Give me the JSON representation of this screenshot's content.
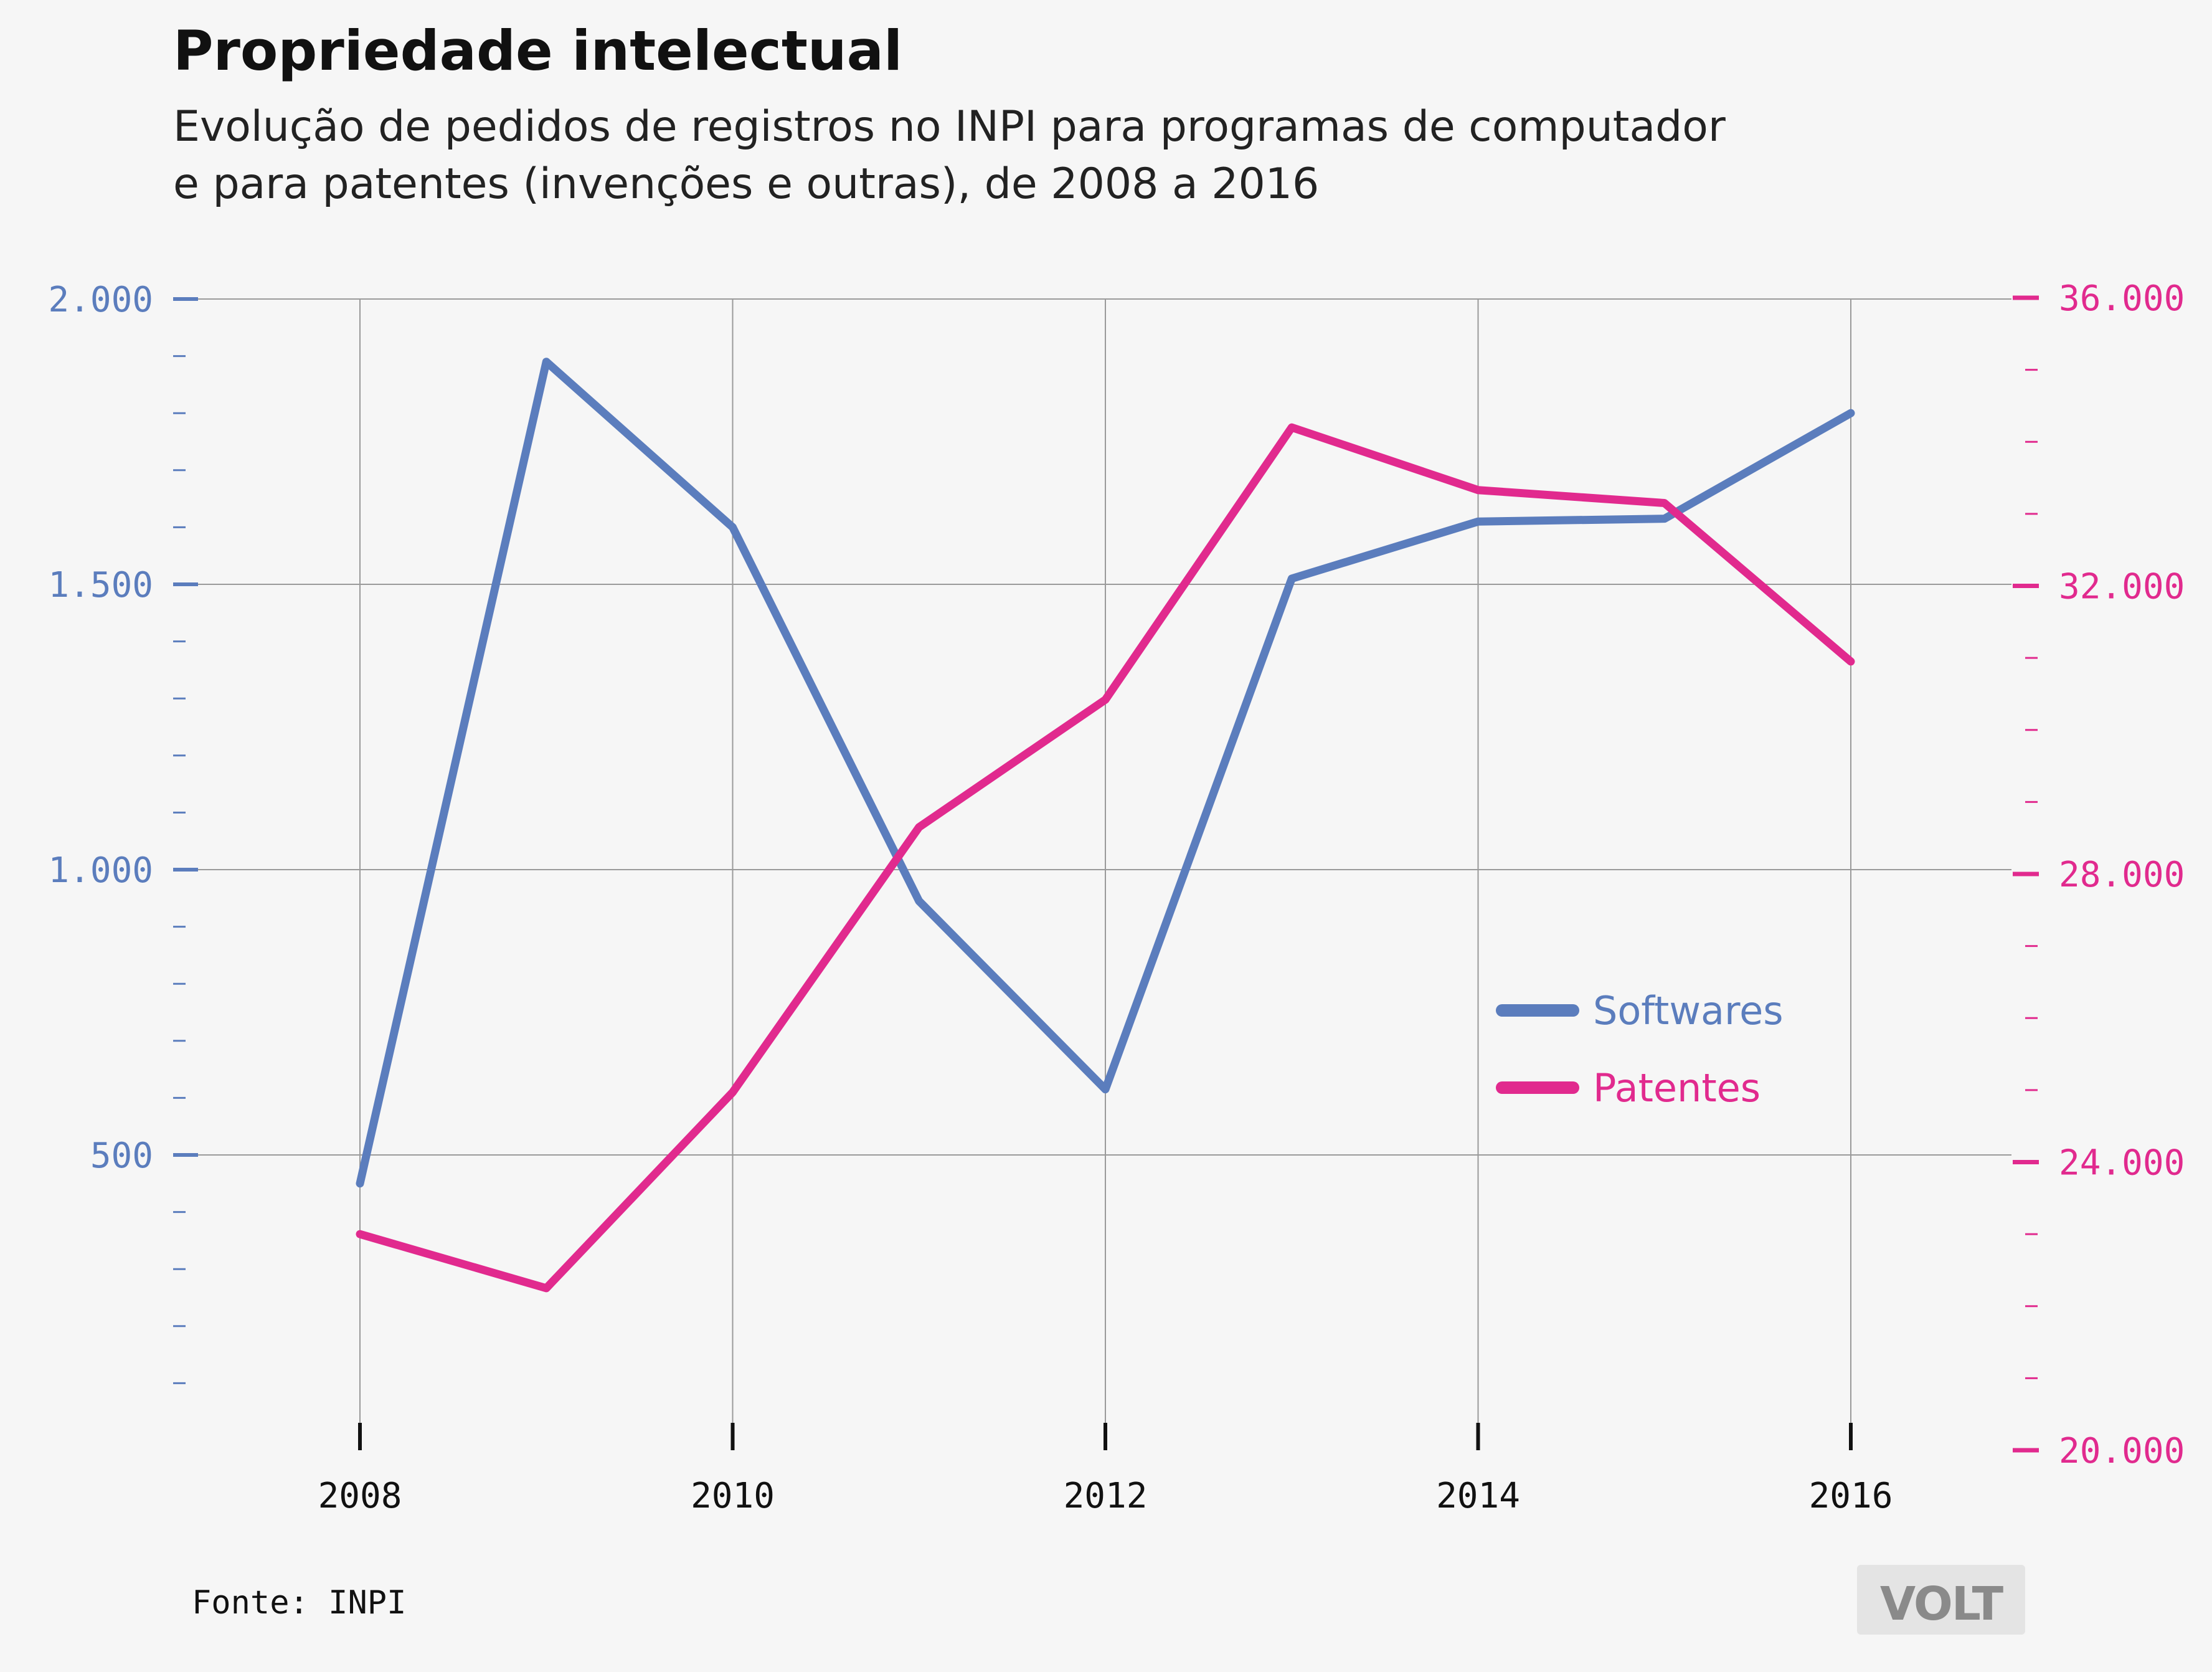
{
  "chart_data": {
    "type": "line",
    "title": "Propriedade intelectual",
    "subtitle_lines": [
      "Evolução de pedidos de registros no INPI para programas de computador",
      "e para patentes (invenções e outras), de 2008 a 2016"
    ],
    "x": [
      2008,
      2009,
      2010,
      2011,
      2012,
      2013,
      2014,
      2015,
      2016
    ],
    "x_ticks": [
      2008,
      2010,
      2012,
      2014,
      2016
    ],
    "x_tick_labels": [
      "2008",
      "2010",
      "2012",
      "2014",
      "2016"
    ],
    "xlim": [
      2008,
      2016
    ],
    "series": [
      {
        "name": "Softwares",
        "axis": "left",
        "color": "#5b7dbd",
        "values": [
          450,
          1890,
          1600,
          945,
          615,
          1510,
          1610,
          1615,
          1800
        ]
      },
      {
        "name": "Patentes",
        "axis": "right",
        "color": "#e12a8e",
        "values": [
          23000,
          22250,
          24970,
          28650,
          30420,
          34200,
          33330,
          33150,
          30950
        ]
      }
    ],
    "y_left": {
      "ylim": [
        0,
        2000
      ],
      "ticks": [
        500,
        1000,
        1500,
        2000
      ],
      "tick_labels": [
        "500",
        "1.000",
        "1.500",
        "2.000"
      ],
      "color": "#5b7dbd"
    },
    "y_right": {
      "ylim": [
        20000,
        36000
      ],
      "ticks": [
        20000,
        24000,
        28000,
        32000,
        36000
      ],
      "tick_labels": [
        "20.000",
        "24.000",
        "28.000",
        "32.000",
        "36.000"
      ],
      "color": "#e12a8e"
    },
    "grid": true,
    "legend_position": "center-right"
  },
  "source_text": "Fonte: INPI",
  "logo_text": "VOLT"
}
